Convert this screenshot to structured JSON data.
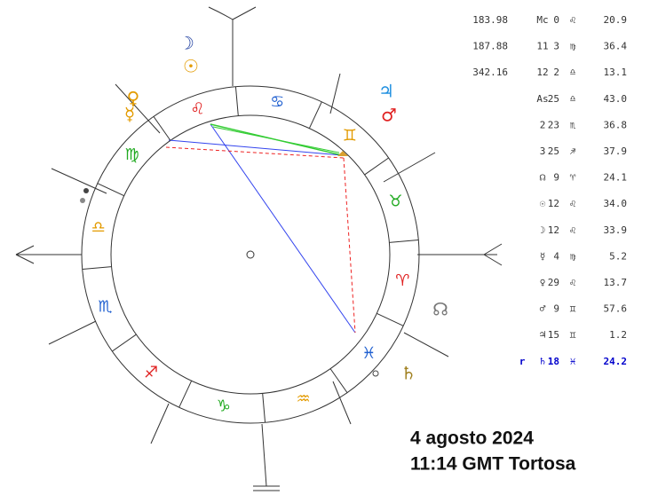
{
  "wheel": {
    "signs": [
      "♌",
      "♋",
      "♊",
      "♉",
      "♈",
      "♓",
      "♒",
      "♑",
      "♐",
      "♏",
      "♎",
      "♍"
    ],
    "planets": [
      "☽",
      "☉",
      "♀",
      "☿",
      "♃",
      "♂",
      "☊",
      "♄"
    ]
  },
  "table": {
    "rows": [
      {
        "num": "183.98",
        "house": "Mc",
        "deg": "0",
        "sign": "♌",
        "min": "20.9"
      },
      {
        "num": "187.88",
        "house": "11",
        "deg": "3",
        "sign": "♍",
        "min": "36.4"
      },
      {
        "num": "342.16",
        "house": "12",
        "deg": "2",
        "sign": "♎",
        "min": "13.1"
      },
      {
        "house": "As",
        "deg": "25",
        "sign": "♎",
        "min": "43.0"
      },
      {
        "house": "2",
        "deg": "23",
        "sign": "♏",
        "min": "36.8"
      },
      {
        "house": "3",
        "deg": "25",
        "sign": "♐",
        "min": "37.9"
      },
      {
        "house": "☊",
        "deg": "9",
        "sign": "♈",
        "min": "24.1"
      },
      {
        "house": "☉",
        "deg": "12",
        "sign": "♌",
        "min": "34.0"
      },
      {
        "house": "☽",
        "deg": "12",
        "sign": "♌",
        "min": "33.9"
      },
      {
        "house": "☿",
        "deg": "4",
        "sign": "♍",
        "min": "5.2"
      },
      {
        "house": "♀",
        "deg": "29",
        "sign": "♌",
        "min": "13.7"
      },
      {
        "house": "♂",
        "deg": "9",
        "sign": "♊",
        "min": "57.6"
      },
      {
        "house": "♃",
        "deg": "15",
        "sign": "♊",
        "min": "1.2"
      },
      {
        "retro": "r",
        "house": "♄",
        "deg": "18",
        "sign": "♓",
        "min": "24.2"
      }
    ]
  },
  "caption": {
    "date": "4 agosto 2024",
    "time_place": "11:14 GMT Tortosa"
  }
}
